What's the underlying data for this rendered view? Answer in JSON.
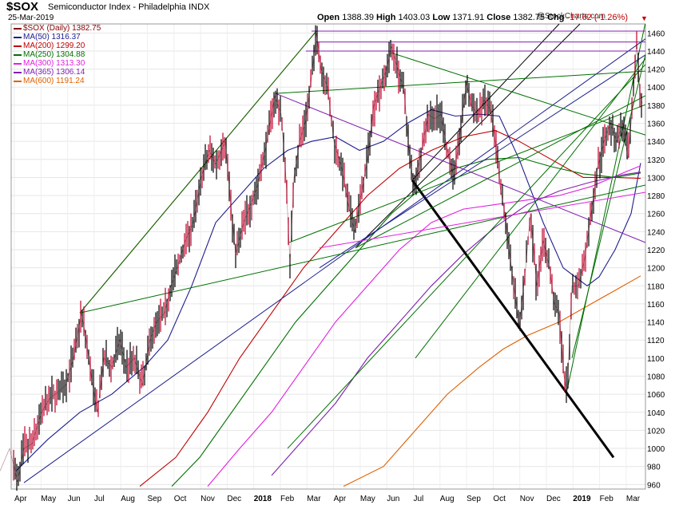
{
  "header": {
    "symbol": "$SOX",
    "name": "Semiconductor Index - Philadelphia",
    "exchange": "INDX",
    "date": "25-Mar-2019",
    "open_label": "Open",
    "open": "1388.39",
    "high_label": "High",
    "high": "1403.03",
    "low_label": "Low",
    "low": "1371.91",
    "close_label": "Close",
    "close": "1382.75",
    "chg_label": "Chg",
    "chg": "-17.62 (-1.26%)",
    "chg_marker": "▼",
    "watermark": "@StockCharts.com"
  },
  "legend": [
    {
      "label": "$SOX (Daily) 1382.75",
      "color": "#8b0000"
    },
    {
      "label": "MA(50) 1316.37",
      "color": "#1e1e8c"
    },
    {
      "label": "MA(200) 1299.20",
      "color": "#c00000"
    },
    {
      "label": "MA(250) 1304.88",
      "color": "#007000"
    },
    {
      "label": "MA(300) 1313.30",
      "color": "#e020e0"
    },
    {
      "label": "MA(365) 1306.14",
      "color": "#8020b0"
    },
    {
      "label": "MA(600) 1191.24",
      "color": "#e06000"
    }
  ],
  "chart_data": {
    "type": "line",
    "title": "$SOX Semiconductor Index - Philadelphia INDX (Daily)",
    "ylim": [
      955,
      1470
    ],
    "y_ticks": [
      960,
      980,
      1000,
      1020,
      1040,
      1060,
      1080,
      1100,
      1120,
      1140,
      1160,
      1180,
      1200,
      1220,
      1240,
      1260,
      1280,
      1300,
      1320,
      1340,
      1360,
      1380,
      1400,
      1420,
      1440,
      1460
    ],
    "x_labels": [
      "Apr",
      "May",
      "Jun",
      "Jul",
      "Aug",
      "Sep",
      "Oct",
      "Nov",
      "Dec",
      "2018",
      "Feb",
      "Mar",
      "Apr",
      "May",
      "Jun",
      "Jul",
      "Aug",
      "Sep",
      "Oct",
      "Nov",
      "Dec",
      "2019",
      "Feb",
      "Mar"
    ],
    "x_label_bold": [
      "2018",
      "2019"
    ],
    "price_points": [
      [
        0,
        975
      ],
      [
        12,
        1000
      ],
      [
        22,
        963
      ],
      [
        30,
        1000
      ],
      [
        40,
        1005
      ],
      [
        52,
        1040
      ],
      [
        62,
        1055
      ],
      [
        72,
        1062
      ],
      [
        82,
        1070
      ],
      [
        92,
        1100
      ],
      [
        102,
        1150
      ],
      [
        108,
        1120
      ],
      [
        115,
        1075
      ],
      [
        122,
        1040
      ],
      [
        130,
        1100
      ],
      [
        140,
        1090
      ],
      [
        150,
        1120
      ],
      [
        158,
        1090
      ],
      [
        168,
        1100
      ],
      [
        178,
        1070
      ],
      [
        188,
        1120
      ],
      [
        196,
        1140
      ],
      [
        206,
        1150
      ],
      [
        214,
        1180
      ],
      [
        222,
        1200
      ],
      [
        232,
        1230
      ],
      [
        242,
        1250
      ],
      [
        252,
        1300
      ],
      [
        262,
        1330
      ],
      [
        270,
        1315
      ],
      [
        282,
        1340
      ],
      [
        290,
        1260
      ],
      [
        295,
        1215
      ],
      [
        305,
        1250
      ],
      [
        314,
        1270
      ],
      [
        322,
        1290
      ],
      [
        332,
        1330
      ],
      [
        338,
        1360
      ],
      [
        344,
        1390
      ],
      [
        352,
        1370
      ],
      [
        358,
        1300
      ],
      [
        363,
        1205
      ],
      [
        368,
        1300
      ],
      [
        375,
        1340
      ],
      [
        382,
        1360
      ],
      [
        390,
        1410
      ],
      [
        396,
        1460
      ],
      [
        402,
        1420
      ],
      [
        410,
        1400
      ],
      [
        418,
        1340
      ],
      [
        428,
        1310
      ],
      [
        436,
        1270
      ],
      [
        444,
        1240
      ],
      [
        452,
        1280
      ],
      [
        460,
        1320
      ],
      [
        468,
        1380
      ],
      [
        476,
        1400
      ],
      [
        484,
        1420
      ],
      [
        490,
        1445
      ],
      [
        498,
        1420
      ],
      [
        506,
        1395
      ],
      [
        512,
        1330
      ],
      [
        518,
        1290
      ],
      [
        528,
        1330
      ],
      [
        536,
        1370
      ],
      [
        544,
        1365
      ],
      [
        552,
        1370
      ],
      [
        560,
        1330
      ],
      [
        568,
        1300
      ],
      [
        576,
        1350
      ],
      [
        584,
        1405
      ],
      [
        590,
        1380
      ],
      [
        598,
        1370
      ],
      [
        606,
        1385
      ],
      [
        614,
        1375
      ],
      [
        620,
        1340
      ],
      [
        626,
        1290
      ],
      [
        632,
        1260
      ],
      [
        638,
        1215
      ],
      [
        644,
        1175
      ],
      [
        650,
        1135
      ],
      [
        658,
        1200
      ],
      [
        664,
        1260
      ],
      [
        672,
        1180
      ],
      [
        680,
        1230
      ],
      [
        688,
        1200
      ],
      [
        694,
        1160
      ],
      [
        700,
        1150
      ],
      [
        706,
        1080
      ],
      [
        710,
        1062
      ],
      [
        716,
        1180
      ],
      [
        724,
        1180
      ],
      [
        732,
        1210
      ],
      [
        740,
        1260
      ],
      [
        748,
        1310
      ],
      [
        756,
        1340
      ],
      [
        764,
        1360
      ],
      [
        772,
        1340
      ],
      [
        780,
        1360
      ],
      [
        786,
        1320
      ],
      [
        792,
        1380
      ],
      [
        797,
        1450
      ],
      [
        801,
        1395
      ],
      [
        804,
        1382
      ]
    ],
    "moving_averages": [
      {
        "name": "MA(50)",
        "color": "#1e1e8c",
        "points": [
          [
            20,
            975
          ],
          [
            60,
            1010
          ],
          [
            100,
            1040
          ],
          [
            140,
            1060
          ],
          [
            180,
            1090
          ],
          [
            210,
            1120
          ],
          [
            240,
            1180
          ],
          [
            270,
            1250
          ],
          [
            300,
            1280
          ],
          [
            330,
            1310
          ],
          [
            360,
            1330
          ],
          [
            390,
            1340
          ],
          [
            420,
            1345
          ],
          [
            450,
            1330
          ],
          [
            480,
            1340
          ],
          [
            510,
            1360
          ],
          [
            540,
            1375
          ],
          [
            570,
            1368
          ],
          [
            600,
            1370
          ],
          [
            625,
            1368
          ],
          [
            650,
            1320
          ],
          [
            680,
            1250
          ],
          [
            705,
            1200
          ],
          [
            720,
            1190
          ],
          [
            735,
            1180
          ],
          [
            750,
            1190
          ],
          [
            770,
            1220
          ],
          [
            790,
            1260
          ],
          [
            802,
            1316
          ]
        ]
      },
      {
        "name": "MA(200)",
        "color": "#c00000",
        "points": [
          [
            175,
            958
          ],
          [
            220,
            990
          ],
          [
            260,
            1040
          ],
          [
            300,
            1100
          ],
          [
            340,
            1150
          ],
          [
            380,
            1200
          ],
          [
            420,
            1240
          ],
          [
            460,
            1280
          ],
          [
            500,
            1310
          ],
          [
            540,
            1330
          ],
          [
            580,
            1345
          ],
          [
            620,
            1352
          ],
          [
            650,
            1340
          ],
          [
            690,
            1320
          ],
          [
            730,
            1300
          ],
          [
            770,
            1300
          ],
          [
            802,
            1299
          ]
        ]
      },
      {
        "name": "MA(250)",
        "color": "#007000",
        "points": [
          [
            215,
            958
          ],
          [
            250,
            990
          ],
          [
            290,
            1040
          ],
          [
            330,
            1090
          ],
          [
            370,
            1140
          ],
          [
            410,
            1180
          ],
          [
            450,
            1220
          ],
          [
            490,
            1260
          ],
          [
            530,
            1290
          ],
          [
            570,
            1310
          ],
          [
            610,
            1320
          ],
          [
            650,
            1322
          ],
          [
            690,
            1312
          ],
          [
            730,
            1304
          ],
          [
            770,
            1300
          ],
          [
            802,
            1305
          ]
        ]
      },
      {
        "name": "MA(300)",
        "color": "#e020e0",
        "points": [
          [
            260,
            958
          ],
          [
            300,
            1000
          ],
          [
            340,
            1040
          ],
          [
            380,
            1090
          ],
          [
            420,
            1140
          ],
          [
            460,
            1180
          ],
          [
            500,
            1220
          ],
          [
            540,
            1250
          ],
          [
            580,
            1265
          ],
          [
            620,
            1270
          ],
          [
            660,
            1275
          ],
          [
            700,
            1280
          ],
          [
            740,
            1290
          ],
          [
            780,
            1305
          ],
          [
            802,
            1313
          ]
        ]
      },
      {
        "name": "MA(365)",
        "color": "#8020b0",
        "points": [
          [
            340,
            970
          ],
          [
            380,
            1010
          ],
          [
            420,
            1050
          ],
          [
            460,
            1100
          ],
          [
            500,
            1140
          ],
          [
            540,
            1180
          ],
          [
            580,
            1215
          ],
          [
            620,
            1245
          ],
          [
            660,
            1270
          ],
          [
            700,
            1285
          ],
          [
            740,
            1295
          ],
          [
            780,
            1303
          ],
          [
            802,
            1306
          ]
        ]
      },
      {
        "name": "MA(600)",
        "color": "#e06000",
        "points": [
          [
            430,
            958
          ],
          [
            480,
            980
          ],
          [
            520,
            1020
          ],
          [
            560,
            1060
          ],
          [
            600,
            1090
          ],
          [
            630,
            1110
          ],
          [
            660,
            1125
          ],
          [
            700,
            1140
          ],
          [
            740,
            1160
          ],
          [
            770,
            1175
          ],
          [
            802,
            1191
          ]
        ]
      }
    ],
    "trendlines": [
      {
        "color": "#c00000",
        "width": 1,
        "points": [
          [
            100,
            1150
          ],
          [
            396,
            1462
          ]
        ]
      },
      {
        "color": "#000000",
        "width": 3,
        "points": [
          [
            516,
            1297
          ],
          [
            768,
            990
          ]
        ]
      },
      {
        "color": "#000000",
        "width": 1,
        "points": [
          [
            445,
            1222
          ],
          [
            760,
            1500
          ]
        ]
      },
      {
        "color": "#000000",
        "width": 1,
        "points": [
          [
            516,
            1297
          ],
          [
            700,
            1470
          ]
        ]
      },
      {
        "color": "#1e1e8c",
        "width": 1,
        "points": [
          [
            30,
            962
          ],
          [
            850,
            1480
          ]
        ]
      },
      {
        "color": "#1e1e8c",
        "width": 1,
        "points": [
          [
            400,
            1200
          ],
          [
            850,
            1460
          ]
        ]
      },
      {
        "color": "#007000",
        "width": 1,
        "points": [
          [
            100,
            1150
          ],
          [
            850,
            1300
          ]
        ]
      },
      {
        "color": "#007000",
        "width": 1,
        "points": [
          [
            100,
            1150
          ],
          [
            396,
            1462
          ]
        ]
      },
      {
        "color": "#007000",
        "width": 1,
        "points": [
          [
            490,
            1438
          ],
          [
            850,
            1335
          ]
        ]
      },
      {
        "color": "#007000",
        "width": 1,
        "points": [
          [
            345,
            1393
          ],
          [
            850,
            1420
          ]
        ]
      },
      {
        "color": "#007000",
        "width": 1,
        "points": [
          [
            362,
            1228
          ],
          [
            850,
            1395
          ]
        ]
      },
      {
        "color": "#007000",
        "width": 1,
        "points": [
          [
            445,
            1222
          ],
          [
            850,
            1410
          ]
        ]
      },
      {
        "color": "#007000",
        "width": 1,
        "points": [
          [
            360,
            1000
          ],
          [
            850,
            1465
          ]
        ]
      },
      {
        "color": "#007000",
        "width": 1,
        "points": [
          [
            520,
            1100
          ],
          [
            850,
            1480
          ]
        ]
      },
      {
        "color": "#007000",
        "width": 1,
        "points": [
          [
            710,
            1065
          ],
          [
            810,
            1480
          ]
        ]
      },
      {
        "color": "#007000",
        "width": 1,
        "points": [
          [
            716,
            1100
          ],
          [
            820,
            1480
          ]
        ]
      },
      {
        "color": "#8020b0",
        "width": 1,
        "points": [
          [
            345,
            1393
          ],
          [
            850,
            1213
          ]
        ]
      },
      {
        "color": "#8020b0",
        "width": 1,
        "points": [
          [
            390,
            1462
          ],
          [
            850,
            1462
          ]
        ]
      },
      {
        "color": "#8020b0",
        "width": 1,
        "points": [
          [
            396,
            1450
          ],
          [
            850,
            1450
          ]
        ]
      },
      {
        "color": "#8020b0",
        "width": 1,
        "points": [
          [
            383,
            1440
          ],
          [
            850,
            1440
          ]
        ]
      },
      {
        "color": "#e020e0",
        "width": 1,
        "points": [
          [
            400,
            1222
          ],
          [
            850,
            1290
          ]
        ]
      }
    ]
  }
}
